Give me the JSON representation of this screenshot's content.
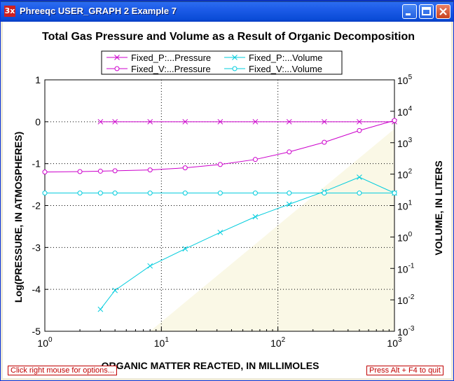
{
  "window": {
    "title": "Phreeqc USER_GRAPH 2 Example 7",
    "icon_label": "3x",
    "controls": [
      "minimize-icon",
      "maximize-icon",
      "close-icon"
    ]
  },
  "hints": {
    "left": "Click right mouse for options...",
    "right": "Press Alt + F4 to quit"
  },
  "chart_data": {
    "type": "line",
    "title": "Total Gas Pressure and Volume as a Result of Organic Decomposition",
    "xlabel": "ORGANIC MATTER REACTED, IN MILLIMOLES",
    "ylabel": "Log(PRESSURE, IN ATMOSPHERES)",
    "y2label": "VOLUME, IN LITERS",
    "x_scale": "log",
    "xlim": [
      1,
      1000
    ],
    "ylim": [
      -5,
      1
    ],
    "y2_scale": "log",
    "y2lim": [
      0.001,
      100000
    ],
    "x_ticks": [
      "10^0",
      "10^1",
      "10^2",
      "10^3"
    ],
    "y_ticks": [
      "1",
      "0",
      "-1",
      "-2",
      "-3",
      "-4",
      "-5"
    ],
    "y2_ticks": [
      "10^5",
      "10^4",
      "10^3",
      "10^2",
      "10^1",
      "10^0",
      "10^-1",
      "10^-2",
      "10^-3"
    ],
    "grid": true,
    "legend_position": "top-center",
    "series": [
      {
        "name": "Fixed_P:...Pressure",
        "axis": "left",
        "marker": "x",
        "color": "#CC00CC",
        "x": [
          3,
          4,
          8,
          16,
          32,
          64,
          125,
          250,
          500,
          1000
        ],
        "y": [
          0.0,
          0.0,
          0.0,
          0.0,
          0.0,
          0.0,
          0.0,
          0.0,
          0.0,
          0.0
        ]
      },
      {
        "name": "Fixed_V:...Pressure",
        "axis": "left",
        "marker": "o",
        "color": "#CC00CC",
        "x": [
          1,
          2,
          3,
          4,
          8,
          16,
          32,
          64,
          125,
          250,
          500,
          1000
        ],
        "y": [
          -1.2,
          -1.19,
          -1.18,
          -1.17,
          -1.15,
          -1.1,
          -1.02,
          -0.9,
          -0.72,
          -0.49,
          -0.21,
          0.03
        ]
      },
      {
        "name": "Fixed_P:...Volume",
        "axis": "right",
        "marker": "x",
        "color": "#00CCDD",
        "x": [
          3,
          4,
          8,
          16,
          32,
          64,
          125,
          250,
          500,
          1000
        ],
        "y": [
          0.005,
          0.02,
          0.12,
          0.42,
          1.4,
          4.4,
          11,
          28,
          80,
          25
        ]
      },
      {
        "name": "Fixed_V:...Volume",
        "axis": "right",
        "marker": "o",
        "color": "#00CCDD",
        "x": [
          1,
          2,
          3,
          4,
          8,
          16,
          32,
          64,
          125,
          250,
          500,
          1000
        ],
        "y": [
          25,
          25,
          25,
          25,
          25,
          25,
          25,
          25,
          25,
          25,
          25,
          25
        ]
      }
    ]
  }
}
